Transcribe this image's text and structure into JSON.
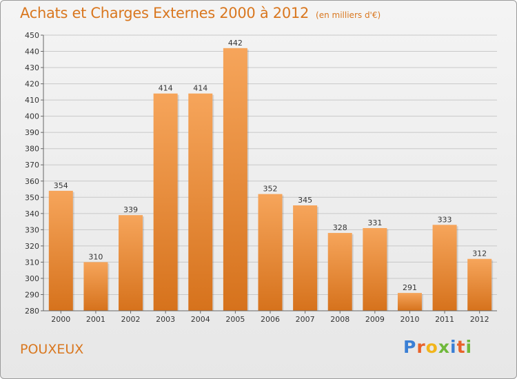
{
  "header": {
    "title": "Achats et Charges Externes 2000 à 2012",
    "unit": "(en milliers d'€)"
  },
  "footer": {
    "commune": "POUXEUX",
    "brand": "Proxiti"
  },
  "colors": {
    "title": "#d9771f",
    "bar_top": "#f6a55b",
    "bar_bottom": "#d6721c",
    "grid": "#c8c8c8",
    "brand_letters": [
      "#3a7fd5",
      "#e8622a",
      "#f2b51b",
      "#6fb83a",
      "#3a7fd5",
      "#e8622a",
      "#6fb83a"
    ]
  },
  "chart_data": {
    "type": "bar",
    "title": "Achats et Charges Externes 2000 à 2012",
    "subtitle": "(en milliers d'€)",
    "xlabel": "",
    "ylabel": "",
    "categories": [
      "2000",
      "2001",
      "2002",
      "2003",
      "2004",
      "2005",
      "2006",
      "2007",
      "2008",
      "2009",
      "2010",
      "2011",
      "2012"
    ],
    "values": [
      354,
      310,
      339,
      414,
      414,
      442,
      352,
      345,
      328,
      331,
      291,
      333,
      312
    ],
    "ylim": [
      280,
      450
    ],
    "ytick_step": 10,
    "grid": true,
    "legend": "none"
  }
}
